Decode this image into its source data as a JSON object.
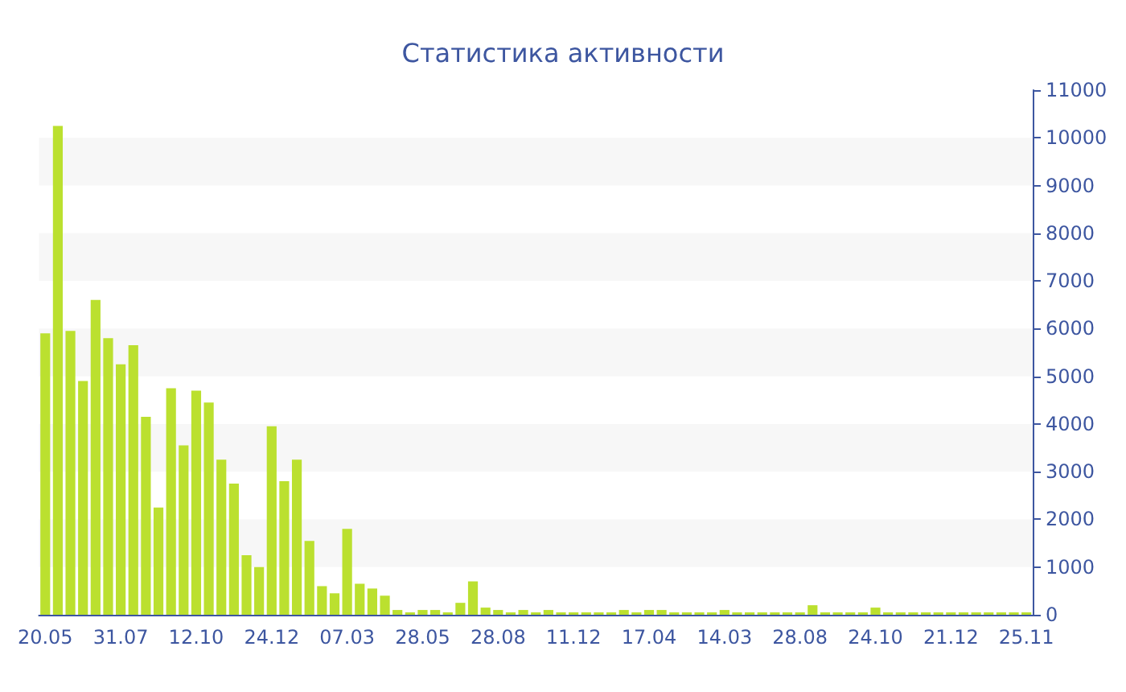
{
  "chart_data": {
    "type": "bar",
    "title": "Статистика активности",
    "categories": [
      "20.05",
      null,
      null,
      null,
      null,
      null,
      "31.07",
      null,
      null,
      null,
      null,
      null,
      "12.10",
      null,
      null,
      null,
      null,
      null,
      "24.12",
      null,
      null,
      null,
      null,
      null,
      "07.03",
      null,
      null,
      null,
      null,
      null,
      "28.05",
      null,
      null,
      null,
      null,
      null,
      "28.08",
      null,
      null,
      null,
      null,
      null,
      "11.12",
      null,
      null,
      null,
      null,
      null,
      "17.04",
      null,
      null,
      null,
      null,
      null,
      "14.03",
      null,
      null,
      null,
      null,
      null,
      "28.08",
      null,
      null,
      null,
      null,
      null,
      "24.10",
      null,
      null,
      null,
      null,
      null,
      "21.12",
      null,
      null,
      null,
      null,
      null,
      "25.11"
    ],
    "values": [
      5900,
      10250,
      5950,
      4900,
      6600,
      5800,
      5250,
      5650,
      4150,
      2250,
      4750,
      3550,
      4700,
      4450,
      3250,
      2750,
      1250,
      1000,
      3950,
      2800,
      3250,
      1550,
      600,
      450,
      1800,
      650,
      550,
      400,
      100,
      50,
      100,
      100,
      50,
      250,
      700,
      150,
      100,
      50,
      100,
      50,
      100,
      50,
      50,
      50,
      50,
      50,
      100,
      50,
      100,
      100,
      50,
      50,
      50,
      50,
      100,
      50,
      50,
      50,
      50,
      50,
      50,
      200,
      50,
      50,
      50,
      50,
      150,
      50,
      50,
      50,
      50,
      50,
      50,
      50,
      50,
      50,
      50,
      50,
      50
    ],
    "color": "#bbe02f",
    "ylim": [
      0,
      11000
    ],
    "yticks": [
      0,
      1000,
      2000,
      3000,
      4000,
      5000,
      6000,
      7000,
      8000,
      9000,
      10000,
      11000
    ],
    "grid": false
  }
}
